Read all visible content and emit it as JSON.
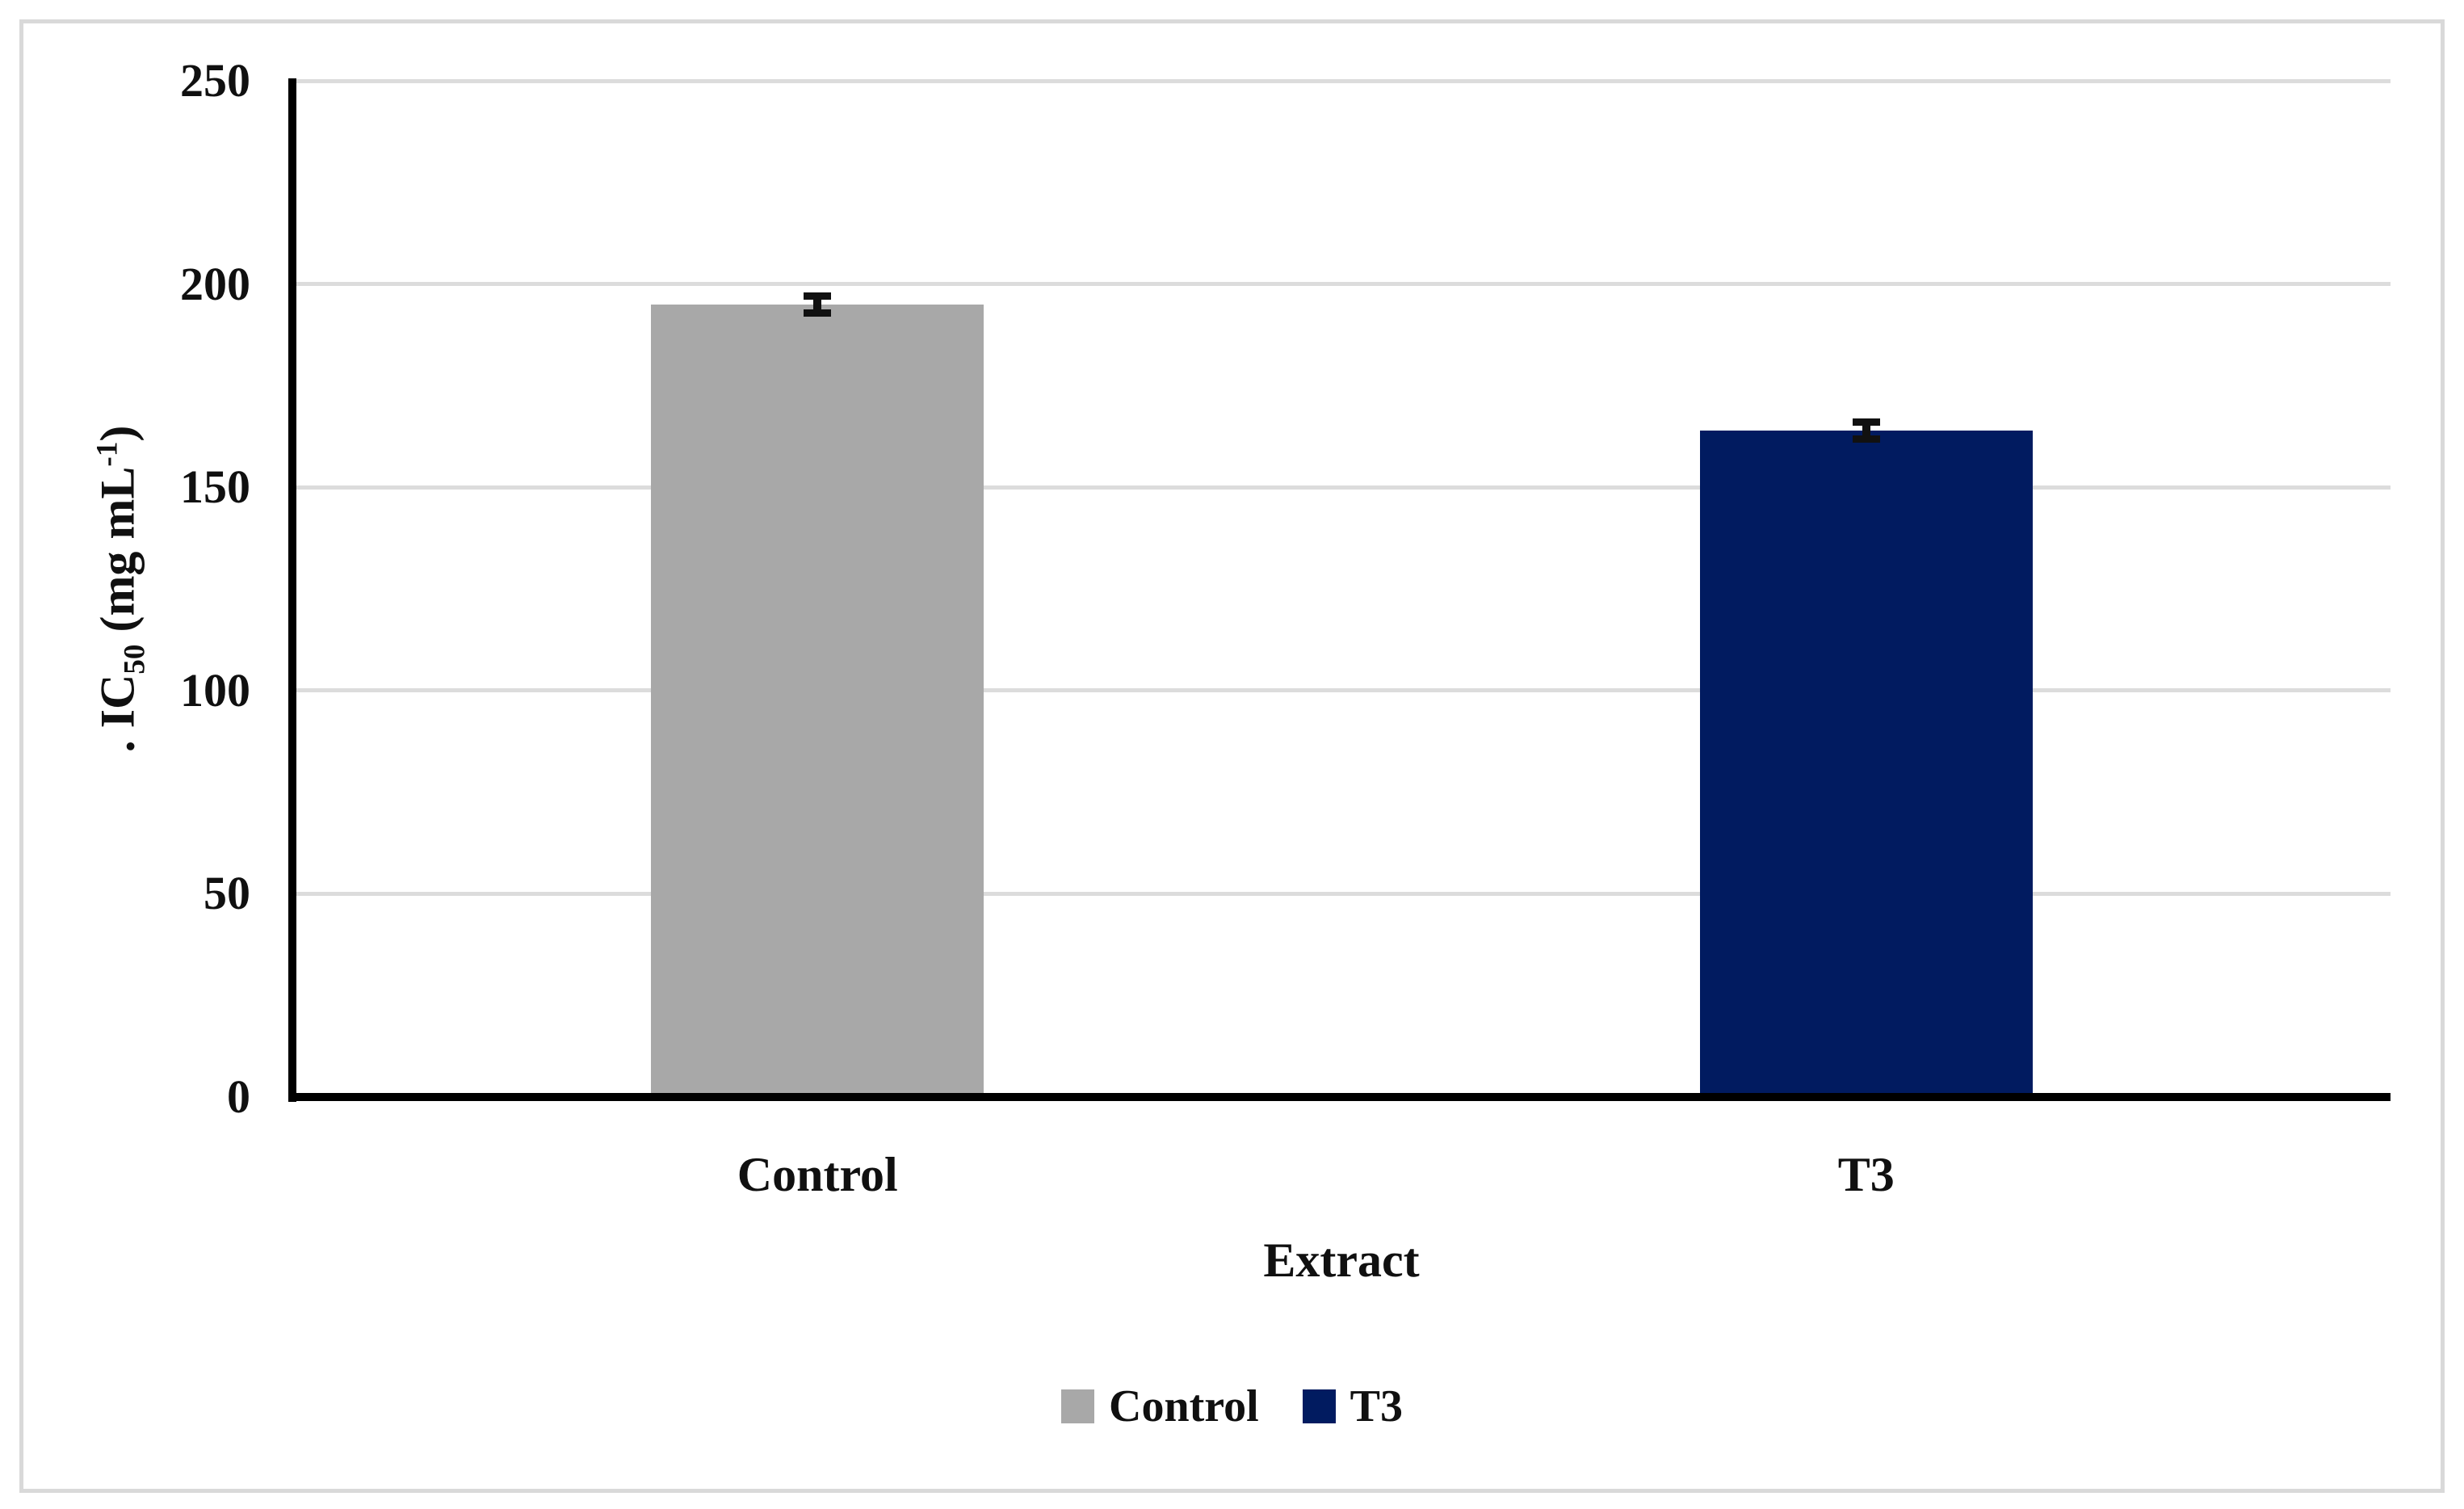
{
  "chart_data": {
    "type": "bar",
    "title": "",
    "categories": [
      "Control",
      "T3"
    ],
    "series": [
      {
        "name": "Control",
        "value": 195,
        "error": 3,
        "color": "#a8a8a8"
      },
      {
        "name": "T3",
        "value": 164,
        "error": 3,
        "color": "#011b60"
      }
    ],
    "xlabel": "Extract",
    "ylabel": ". IC50 (mg mL-1)",
    "ylabel_parts": [
      {
        "text": ". IC",
        "style": "normal"
      },
      {
        "text": "50",
        "style": "sub"
      },
      {
        "text": " (mg mL",
        "style": "normal"
      },
      {
        "text": "-1",
        "style": "sup"
      },
      {
        "text": ")",
        "style": "normal"
      }
    ],
    "ylim": [
      0,
      250
    ],
    "yticks": [
      0,
      50,
      100,
      150,
      200,
      250
    ],
    "grid": true,
    "legend_position": "bottom"
  },
  "colors": {
    "bar_control": "#a8a8a8",
    "bar_t3": "#011b60",
    "gridline": "#dcdcdc",
    "axis": "#000000",
    "error_bar": "#111111",
    "text": "#101010",
    "figure_border": "#d9d9d9",
    "background": "#ffffff"
  }
}
